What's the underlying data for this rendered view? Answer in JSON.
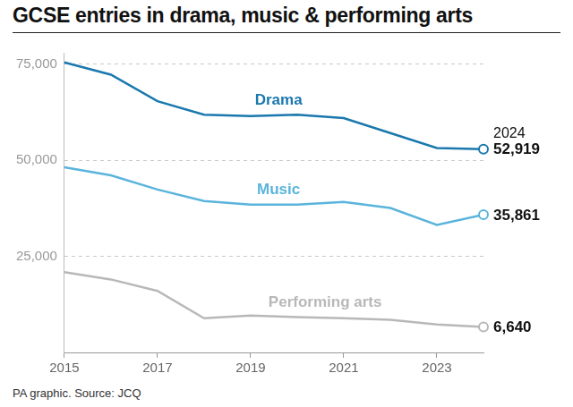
{
  "chart_data": {
    "type": "line",
    "title": "GCSE entries in drama, music & performing arts",
    "source": "PA graphic. Source: JCQ",
    "x": [
      2015,
      2016,
      2017,
      2018,
      2019,
      2020,
      2021,
      2022,
      2023,
      2024
    ],
    "xlim": [
      2015,
      2024
    ],
    "xticks": [
      2015,
      2017,
      2019,
      2021,
      2023
    ],
    "ylim": [
      0,
      78000
    ],
    "yticks": [
      {
        "value": 25000,
        "label": "25,000"
      },
      {
        "value": 50000,
        "label": "50,000"
      },
      {
        "value": 75000,
        "label": "75,000"
      }
    ],
    "grid": true,
    "series": [
      {
        "name": "Drama",
        "color": "#1a78ae",
        "marker": "open_circle",
        "values": [
          75500,
          72300,
          65400,
          61900,
          61500,
          61900,
          61000,
          57100,
          53200,
          52919
        ],
        "value_labels": [
          null,
          null,
          null,
          null,
          null,
          null,
          null,
          null,
          null,
          "52,919"
        ]
      },
      {
        "name": "Music",
        "color": "#5ab4dc",
        "marker": "open_circle",
        "values": [
          48200,
          46100,
          42400,
          39400,
          38500,
          38500,
          39200,
          37600,
          33200,
          35861
        ],
        "value_labels": [
          null,
          null,
          null,
          null,
          null,
          null,
          null,
          null,
          null,
          "35,861"
        ]
      },
      {
        "name": "Performing arts",
        "color": "#b8b8b8",
        "marker": "open_circle",
        "values": [
          20900,
          19000,
          16000,
          8900,
          9600,
          9200,
          8900,
          8500,
          7300,
          6640
        ],
        "value_labels": [
          null,
          null,
          null,
          null,
          null,
          null,
          null,
          null,
          null,
          "6,640"
        ]
      }
    ],
    "annotations": [
      {
        "text": "2024",
        "x": 2024,
        "series": "Drama"
      }
    ]
  }
}
